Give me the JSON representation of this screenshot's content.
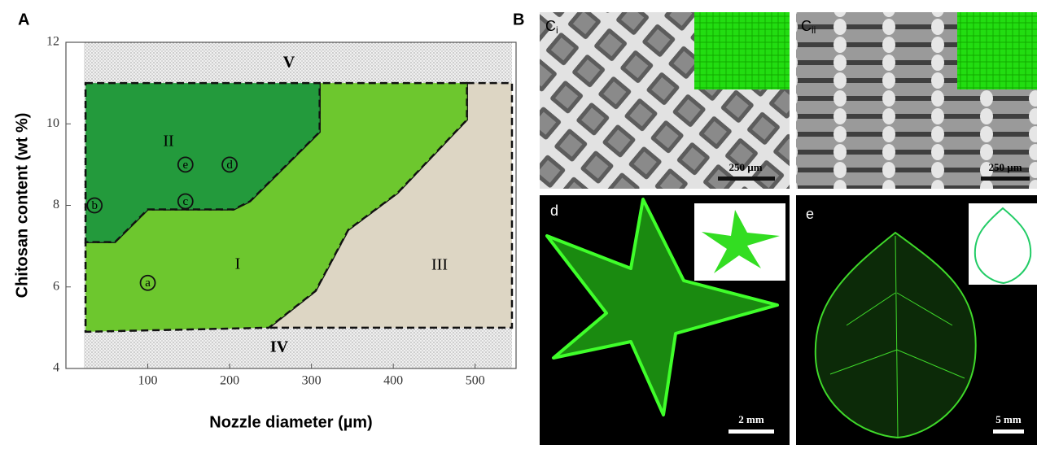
{
  "panel_labels": {
    "a": "A",
    "b": "B"
  },
  "chart_data": {
    "type": "phase",
    "xlabel": "Nozzle diameter (µm)",
    "ylabel": "Chitosan content (wt %)",
    "xlim": [
      0,
      550
    ],
    "ylim": [
      4,
      12
    ],
    "xticks": [
      100,
      200,
      300,
      400,
      500
    ],
    "yticks": [
      4,
      6,
      8,
      10,
      12
    ],
    "regions": [
      {
        "name": "V",
        "color": "#ecebeb",
        "x": [
          22,
          545,
          545,
          22
        ],
        "y": [
          12,
          12,
          11,
          11
        ]
      },
      {
        "name": "IV",
        "color": "#ecebeb",
        "x": [
          22,
          545,
          545,
          22
        ],
        "y": [
          5,
          5,
          4,
          4
        ]
      },
      {
        "name": "III",
        "color": "#ddd6c4",
        "x": [
          490,
          545,
          545,
          248,
          305,
          345,
          405,
          490
        ],
        "y": [
          11,
          11,
          5,
          5,
          5.9,
          7.4,
          8.3,
          10.1
        ]
      },
      {
        "name": "I",
        "color": "#6dc72e",
        "x": [
          24,
          60,
          100,
          205,
          225,
          310,
          310,
          490,
          490,
          405,
          345,
          305,
          248,
          24
        ],
        "y": [
          7.1,
          7.1,
          7.9,
          7.9,
          8.1,
          9.8,
          11,
          11,
          10.1,
          8.3,
          7.4,
          5.9,
          5,
          4.9
        ]
      },
      {
        "name": "II",
        "color": "#239a3c",
        "x": [
          24,
          310,
          310,
          225,
          205,
          100,
          60,
          24
        ],
        "y": [
          11,
          11,
          9.8,
          8.1,
          7.9,
          7.9,
          7.1,
          7.1
        ]
      }
    ],
    "points": {
      "labels": [
        "a",
        "b",
        "c",
        "d",
        "e"
      ],
      "x": [
        100,
        35,
        146,
        200,
        146
      ],
      "y": [
        6.1,
        8,
        8.1,
        9,
        9
      ]
    }
  },
  "images": {
    "ci": {
      "label": "C",
      "sub": "i",
      "scale": "250 µm"
    },
    "cii": {
      "label": "C",
      "sub": "ii",
      "scale": "250 µm"
    },
    "d": {
      "label": "d",
      "scale": "2 mm"
    },
    "e": {
      "label": "e",
      "scale": "5 mm"
    }
  }
}
